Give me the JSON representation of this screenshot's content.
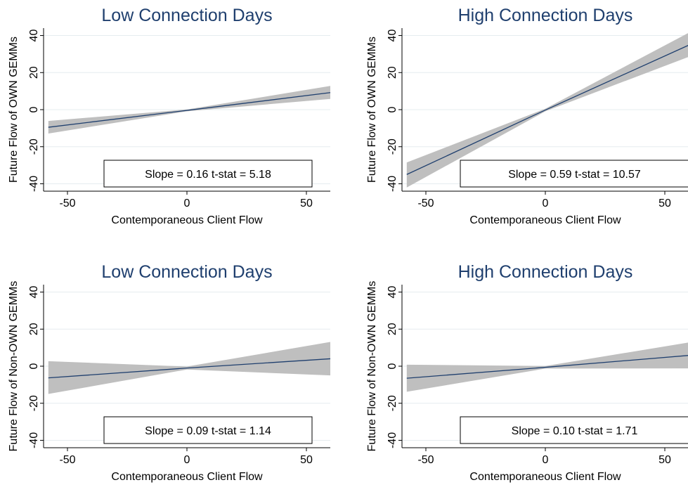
{
  "colors": {
    "title": "#1f3f6e",
    "line": "#1f3f6e",
    "band": "#bfbfbf",
    "grid": "#e5ecef",
    "axis": "#000000"
  },
  "chart_data": [
    {
      "type": "line",
      "title": "Low Connection Days",
      "xlabel": "Contemporaneous Client Flow",
      "ylabel": "Future Flow of OWN GEMMs",
      "xlim": [
        -60,
        60
      ],
      "ylim": [
        -44,
        44
      ],
      "xticks": [
        -50,
        0,
        50
      ],
      "yticks": [
        -40,
        -20,
        0,
        20,
        40
      ],
      "xtick_labels": [
        "-50",
        "0",
        "50"
      ],
      "ytick_labels": [
        "-40",
        "-20",
        "0",
        "20",
        "40"
      ],
      "grid": true,
      "series": [
        {
          "x": [
            -58,
            0,
            60
          ],
          "y": [
            -9.5,
            -0.4,
            9.2
          ],
          "ci_lower": [
            -12.9,
            -0.9,
            5.8
          ],
          "ci_upper": [
            -6.1,
            0.1,
            12.8
          ]
        }
      ],
      "annotation": {
        "slope_label": "Slope =",
        "slope": "0.16",
        "t_label": "t-stat =",
        "t": "5.18"
      }
    },
    {
      "type": "line",
      "title": "High Connection Days",
      "xlabel": "Contemporaneous Client Flow",
      "ylabel": "Future Flow of OWN GEMMs",
      "xlim": [
        -60,
        60
      ],
      "ylim": [
        -44,
        44
      ],
      "xticks": [
        -50,
        0,
        50
      ],
      "yticks": [
        -40,
        -20,
        0,
        20,
        40
      ],
      "xtick_labels": [
        "-50",
        "0",
        "50"
      ],
      "ytick_labels": [
        "-40",
        "-20",
        "0",
        "20",
        "40"
      ],
      "grid": true,
      "series": [
        {
          "x": [
            -58,
            0,
            60
          ],
          "y": [
            -35,
            -0.2,
            34.8
          ],
          "ci_lower": [
            -42,
            -0.9,
            28.5
          ],
          "ci_upper": [
            -28.5,
            0.5,
            41.5
          ]
        }
      ],
      "annotation": {
        "slope_label": "Slope =",
        "slope": "0.59",
        "t_label": "t-stat =",
        "t": "10.57"
      }
    },
    {
      "type": "line",
      "title": "Low Connection Days",
      "xlabel": "Contemporaneous Client Flow",
      "ylabel": "Future Flow of Non-OWN GEMMs",
      "xlim": [
        -60,
        60
      ],
      "ylim": [
        -44,
        44
      ],
      "xticks": [
        -50,
        0,
        50
      ],
      "yticks": [
        -40,
        -20,
        0,
        20,
        40
      ],
      "xtick_labels": [
        "-50",
        "0",
        "50"
      ],
      "ytick_labels": [
        "-40",
        "-20",
        "0",
        "20",
        "40"
      ],
      "grid": true,
      "series": [
        {
          "x": [
            -58,
            0,
            60
          ],
          "y": [
            -6.3,
            -1.0,
            4.0
          ],
          "ci_lower": [
            -15.0,
            -1.8,
            -5.0
          ],
          "ci_upper": [
            2.7,
            -0.2,
            13.1
          ]
        }
      ],
      "annotation": {
        "slope_label": "Slope =",
        "slope": "0.09",
        "t_label": "t-stat =",
        "t": "1.14"
      }
    },
    {
      "type": "line",
      "title": "High Connection Days",
      "xlabel": "Contemporaneous Client Flow",
      "ylabel": "Future Flow of Non-OWN GEMMs",
      "xlim": [
        -60,
        60
      ],
      "ylim": [
        -44,
        44
      ],
      "xticks": [
        -50,
        0,
        50
      ],
      "yticks": [
        -40,
        -20,
        0,
        20,
        40
      ],
      "xtick_labels": [
        "-50",
        "0",
        "50"
      ],
      "ytick_labels": [
        "-40",
        "-20",
        "0",
        "20",
        "40"
      ],
      "grid": true,
      "series": [
        {
          "x": [
            -58,
            0,
            60
          ],
          "y": [
            -6.5,
            -0.6,
            5.8
          ],
          "ci_lower": [
            -13.8,
            -1.3,
            -1.2
          ],
          "ci_upper": [
            0.8,
            0.1,
            12.8
          ]
        }
      ],
      "annotation": {
        "slope_label": "Slope =",
        "slope": "0.10",
        "t_label": "t-stat =",
        "t": "1.71"
      }
    }
  ]
}
